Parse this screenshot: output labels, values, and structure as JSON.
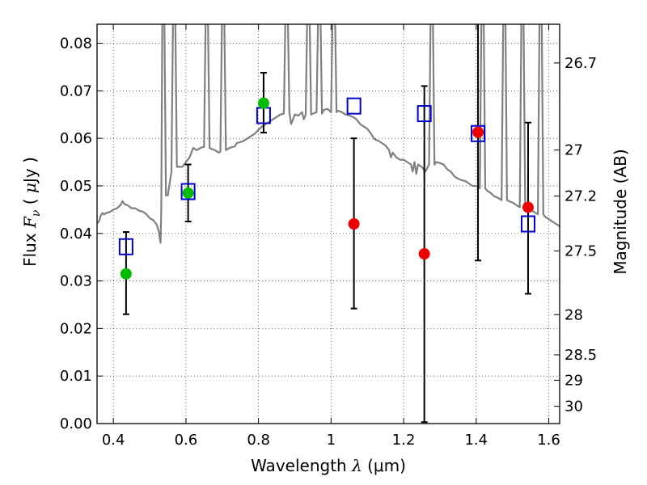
{
  "chart_data": {
    "type": "scatter",
    "xlabel": "Wavelength  λ (μm)",
    "xlabel_parts": {
      "pre": "Wavelength  ",
      "var": "λ",
      "post": " (μm)"
    },
    "ylabel": "Flux  Fν  ( μJy )",
    "ylabel_parts": {
      "pre": "Flux  ",
      "var": "F",
      "sub": "ν",
      "post1": "  ( ",
      "mu": "μ",
      "post2": "Jy )"
    },
    "y2label": "Magnitude (AB)",
    "xlim": [
      0.355,
      1.63
    ],
    "ylim": [
      0.0,
      0.084
    ],
    "grid": true,
    "grid_style": "dotted",
    "x_ticks": [
      {
        "value": 0.4,
        "label": "0.4"
      },
      {
        "value": 0.6,
        "label": "0.6"
      },
      {
        "value": 0.8,
        "label": "0.8"
      },
      {
        "value": 1.0,
        "label": "1"
      },
      {
        "value": 1.2,
        "label": "1.2"
      },
      {
        "value": 1.4,
        "label": "1.4"
      },
      {
        "value": 1.6,
        "label": "1.6"
      }
    ],
    "y_ticks": [
      {
        "value": 0.0,
        "label": "0.00"
      },
      {
        "value": 0.01,
        "label": "0.01"
      },
      {
        "value": 0.02,
        "label": "0.02"
      },
      {
        "value": 0.03,
        "label": "0.03"
      },
      {
        "value": 0.04,
        "label": "0.04"
      },
      {
        "value": 0.05,
        "label": "0.05"
      },
      {
        "value": 0.06,
        "label": "0.06"
      },
      {
        "value": 0.07,
        "label": "0.07"
      },
      {
        "value": 0.08,
        "label": "0.08"
      }
    ],
    "y2_ticks": [
      {
        "mag": 26.7,
        "label": "26.7"
      },
      {
        "mag": 27,
        "label": "27"
      },
      {
        "mag": 27.2,
        "label": "27.2"
      },
      {
        "mag": 27.5,
        "label": "27.5"
      },
      {
        "mag": 28,
        "label": "28"
      },
      {
        "mag": 28.5,
        "label": "28.5"
      },
      {
        "mag": 29,
        "label": "29"
      },
      {
        "mag": 30,
        "label": "30"
      }
    ],
    "series": [
      {
        "kind": "line",
        "color": "#808080",
        "points": [
          [
            0.355,
            0.0421
          ],
          [
            0.36,
            0.0425
          ],
          [
            0.365,
            0.0437
          ],
          [
            0.37,
            0.0443
          ],
          [
            0.375,
            0.044
          ],
          [
            0.38,
            0.0443
          ],
          [
            0.39,
            0.0445
          ],
          [
            0.4,
            0.045
          ],
          [
            0.41,
            0.0453
          ],
          [
            0.42,
            0.046
          ],
          [
            0.425,
            0.0468
          ],
          [
            0.43,
            0.0462
          ],
          [
            0.44,
            0.0459
          ],
          [
            0.45,
            0.0453
          ],
          [
            0.46,
            0.0453
          ],
          [
            0.47,
            0.0448
          ],
          [
            0.48,
            0.0446
          ],
          [
            0.49,
            0.0441
          ],
          [
            0.5,
            0.0432
          ],
          [
            0.51,
            0.0428
          ],
          [
            0.52,
            0.0418
          ],
          [
            0.525,
            0.0404
          ],
          [
            0.53,
            0.038
          ],
          [
            0.532,
            0.045
          ],
          [
            0.535,
            0.09
          ],
          [
            0.54,
            0.09
          ],
          [
            0.545,
            0.048
          ],
          [
            0.55,
            0.048
          ],
          [
            0.56,
            0.053
          ],
          [
            0.565,
            0.09
          ],
          [
            0.57,
            0.09
          ],
          [
            0.575,
            0.054
          ],
          [
            0.59,
            0.054
          ],
          [
            0.6,
            0.055
          ],
          [
            0.61,
            0.056
          ],
          [
            0.62,
            0.058
          ],
          [
            0.63,
            0.0575
          ],
          [
            0.64,
            0.058
          ],
          [
            0.65,
            0.0582
          ],
          [
            0.655,
            0.09
          ],
          [
            0.66,
            0.09
          ],
          [
            0.665,
            0.058
          ],
          [
            0.67,
            0.0578
          ],
          [
            0.68,
            0.0575
          ],
          [
            0.69,
            0.057
          ],
          [
            0.695,
            0.0572
          ],
          [
            0.7,
            0.09
          ],
          [
            0.705,
            0.09
          ],
          [
            0.71,
            0.0575
          ],
          [
            0.72,
            0.058
          ],
          [
            0.73,
            0.0582
          ],
          [
            0.735,
            0.0583
          ],
          [
            0.74,
            0.059
          ],
          [
            0.75,
            0.0592
          ],
          [
            0.76,
            0.0595
          ],
          [
            0.77,
            0.06
          ],
          [
            0.78,
            0.0605
          ],
          [
            0.79,
            0.061
          ],
          [
            0.8,
            0.0618
          ],
          [
            0.81,
            0.0625
          ],
          [
            0.82,
            0.063
          ],
          [
            0.83,
            0.0635
          ],
          [
            0.84,
            0.064
          ],
          [
            0.85,
            0.0645
          ],
          [
            0.86,
            0.065
          ],
          [
            0.87,
            0.0652
          ],
          [
            0.875,
            0.09
          ],
          [
            0.88,
            0.09
          ],
          [
            0.885,
            0.0655
          ],
          [
            0.89,
            0.063
          ],
          [
            0.9,
            0.065
          ],
          [
            0.91,
            0.0648
          ],
          [
            0.92,
            0.0655
          ],
          [
            0.925,
            0.064
          ],
          [
            0.93,
            0.065
          ],
          [
            0.935,
            0.09
          ],
          [
            0.94,
            0.09
          ],
          [
            0.945,
            0.065
          ],
          [
            0.95,
            0.0652
          ],
          [
            0.96,
            0.0655
          ],
          [
            0.965,
            0.09
          ],
          [
            0.97,
            0.09
          ],
          [
            0.975,
            0.0652
          ],
          [
            0.98,
            0.066
          ],
          [
            0.99,
            0.0662
          ],
          [
            1.0,
            0.0655
          ],
          [
            1.005,
            0.09
          ],
          [
            1.01,
            0.09
          ],
          [
            1.015,
            0.0655
          ],
          [
            1.02,
            0.0658
          ],
          [
            1.03,
            0.0655
          ],
          [
            1.04,
            0.065
          ],
          [
            1.05,
            0.0648
          ],
          [
            1.06,
            0.0645
          ],
          [
            1.07,
            0.064
          ],
          [
            1.08,
            0.063
          ],
          [
            1.09,
            0.0625
          ],
          [
            1.1,
            0.062
          ],
          [
            1.11,
            0.061
          ],
          [
            1.12,
            0.0598
          ],
          [
            1.13,
            0.0595
          ],
          [
            1.14,
            0.059
          ],
          [
            1.15,
            0.0585
          ],
          [
            1.16,
            0.0575
          ],
          [
            1.165,
            0.056
          ],
          [
            1.17,
            0.057
          ],
          [
            1.18,
            0.056
          ],
          [
            1.19,
            0.0555
          ],
          [
            1.2,
            0.0555
          ],
          [
            1.21,
            0.055
          ],
          [
            1.22,
            0.0545
          ],
          [
            1.225,
            0.053
          ],
          [
            1.23,
            0.055
          ],
          [
            1.235,
            0.0525
          ],
          [
            1.24,
            0.0545
          ],
          [
            1.25,
            0.054
          ],
          [
            1.26,
            0.053
          ],
          [
            1.27,
            0.0545
          ],
          [
            1.275,
            0.09
          ],
          [
            1.28,
            0.09
          ],
          [
            1.285,
            0.0545
          ],
          [
            1.29,
            0.055
          ],
          [
            1.3,
            0.0548
          ],
          [
            1.31,
            0.0545
          ],
          [
            1.32,
            0.0535
          ],
          [
            1.33,
            0.053
          ],
          [
            1.34,
            0.052
          ],
          [
            1.35,
            0.0515
          ],
          [
            1.36,
            0.0512
          ],
          [
            1.37,
            0.051
          ],
          [
            1.38,
            0.0505
          ],
          [
            1.39,
            0.05
          ],
          [
            1.4,
            0.05
          ],
          [
            1.41,
            0.0495
          ],
          [
            1.415,
            0.09
          ],
          [
            1.42,
            0.09
          ],
          [
            1.425,
            0.0495
          ],
          [
            1.43,
            0.049
          ],
          [
            1.44,
            0.0485
          ],
          [
            1.45,
            0.0478
          ],
          [
            1.46,
            0.0475
          ],
          [
            1.47,
            0.047
          ],
          [
            1.475,
            0.09
          ],
          [
            1.48,
            0.09
          ],
          [
            1.485,
            0.047
          ],
          [
            1.49,
            0.0468
          ],
          [
            1.5,
            0.0465
          ],
          [
            1.51,
            0.046
          ],
          [
            1.52,
            0.0455
          ],
          [
            1.525,
            0.09
          ],
          [
            1.53,
            0.09
          ],
          [
            1.535,
            0.0455
          ],
          [
            1.54,
            0.0452
          ],
          [
            1.55,
            0.045
          ],
          [
            1.56,
            0.0445
          ],
          [
            1.57,
            0.044
          ],
          [
            1.575,
            0.09
          ],
          [
            1.58,
            0.09
          ],
          [
            1.585,
            0.044
          ],
          [
            1.59,
            0.0435
          ],
          [
            1.6,
            0.043
          ],
          [
            1.61,
            0.0425
          ],
          [
            1.62,
            0.042
          ],
          [
            1.63,
            0.0415
          ]
        ]
      },
      {
        "kind": "square",
        "color": "#0000cc",
        "points": [
          [
            0.435,
            0.0372
          ],
          [
            0.606,
            0.0488
          ],
          [
            0.814,
            0.0648
          ],
          [
            1.063,
            0.0668
          ],
          [
            1.257,
            0.0652
          ],
          [
            1.405,
            0.061
          ],
          [
            1.543,
            0.042
          ]
        ]
      },
      {
        "kind": "dot",
        "color": "#00bb00",
        "points": [
          [
            0.435,
            0.0315
          ],
          [
            0.606,
            0.0485
          ],
          [
            0.814,
            0.0674
          ]
        ]
      },
      {
        "kind": "dot",
        "color": "#ee0000",
        "points": [
          [
            1.063,
            0.042
          ],
          [
            1.257,
            0.0357
          ],
          [
            1.405,
            0.0613
          ],
          [
            1.543,
            0.0455
          ]
        ]
      },
      {
        "kind": "errorbar",
        "color": "#000000",
        "bars": [
          [
            0.435,
            0.023,
            0.0403
          ],
          [
            0.606,
            0.0425,
            0.0545
          ],
          [
            0.814,
            0.0612,
            0.0738
          ],
          [
            1.063,
            0.0242,
            0.06
          ],
          [
            1.257,
            0.0003,
            0.071
          ],
          [
            1.405,
            0.0343,
            0.0845
          ],
          [
            1.543,
            0.0273,
            0.0633
          ]
        ]
      }
    ]
  }
}
